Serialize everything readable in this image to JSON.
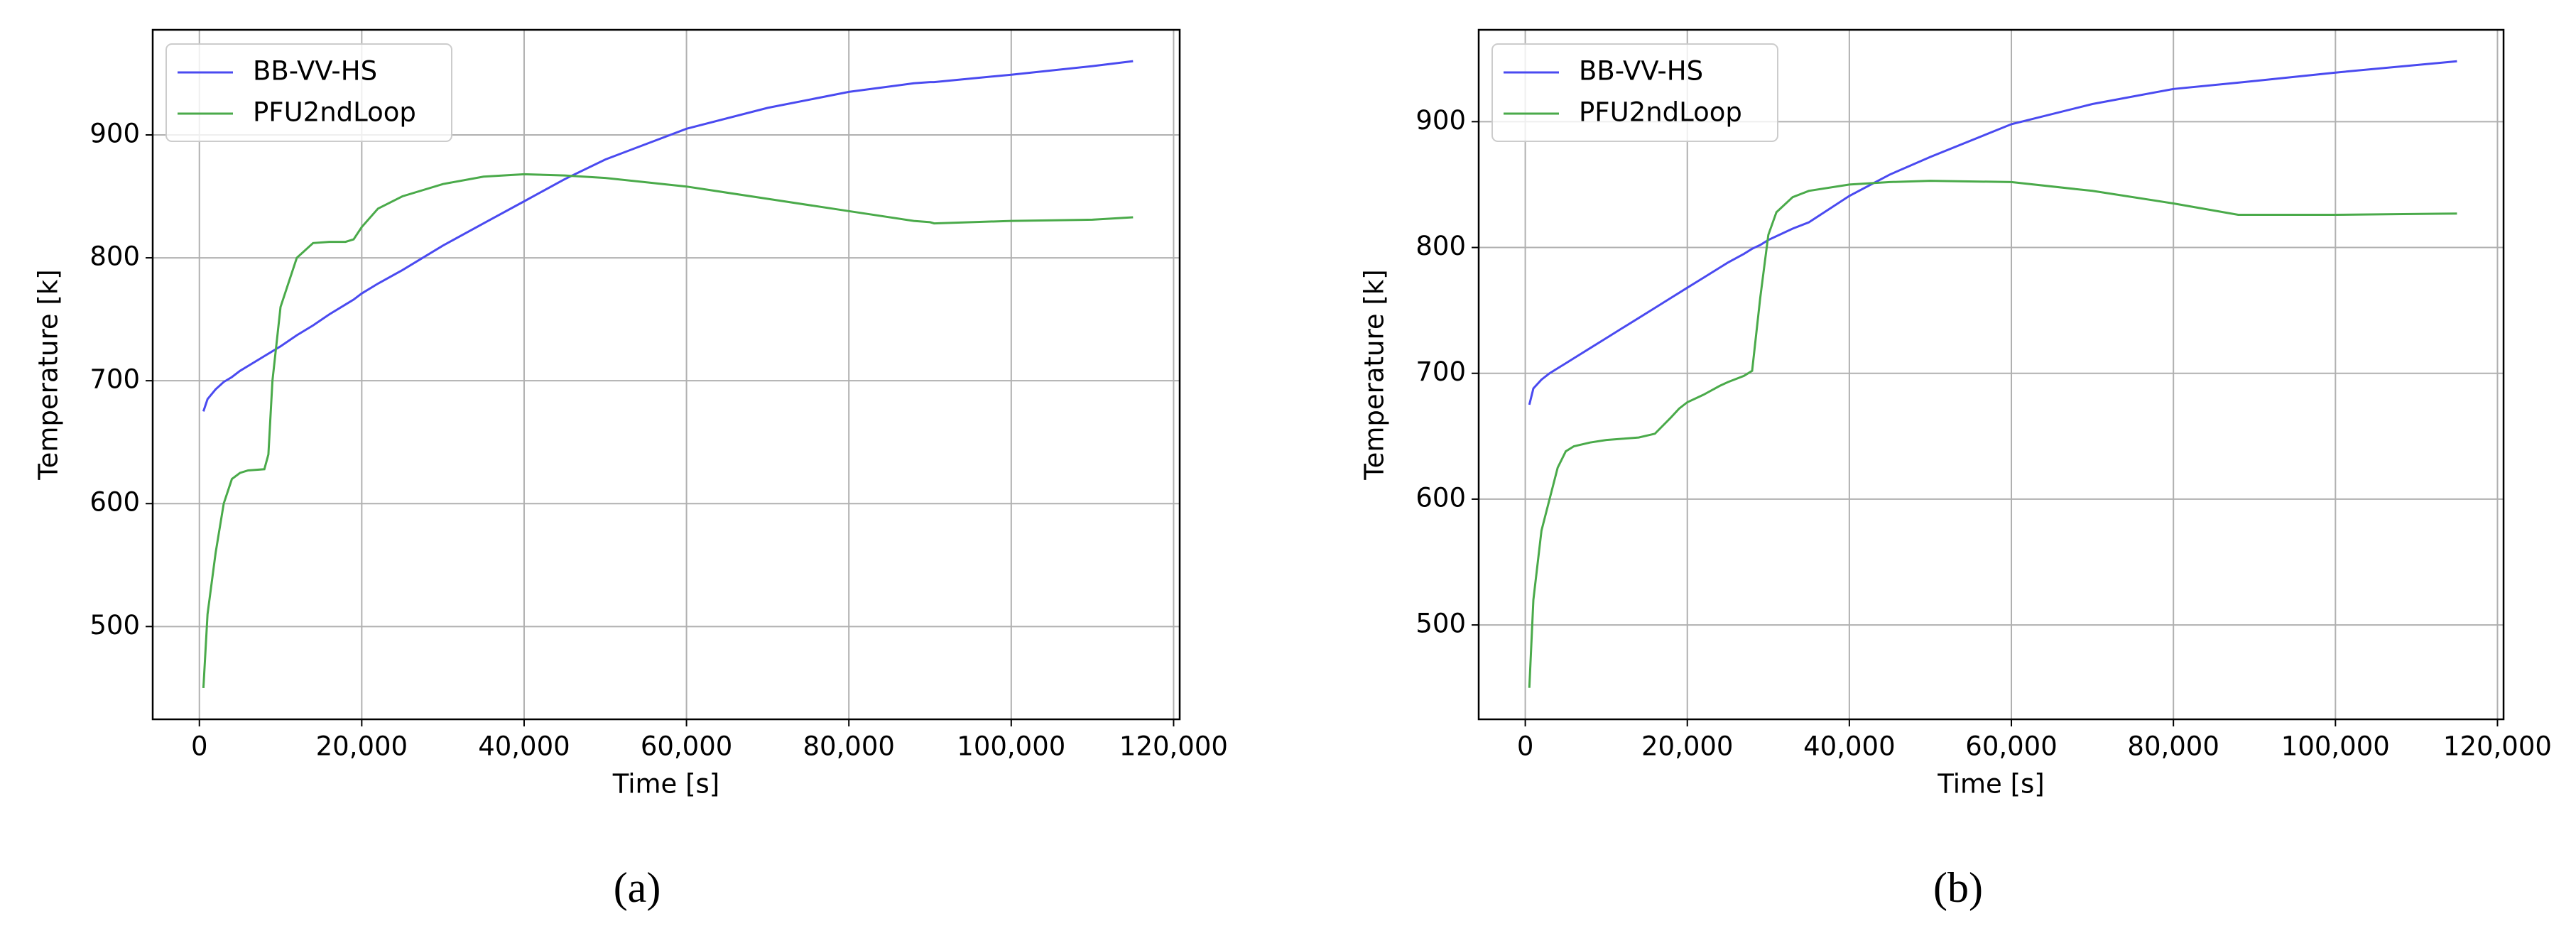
{
  "chart_data": [
    {
      "type": "line",
      "label": "(a)",
      "x_label": "Time [s]",
      "y_label": "Temperature [k]",
      "x": [
        500,
        1000,
        2000,
        3000,
        4000,
        5000,
        6000,
        8000,
        8500,
        9000,
        10000,
        12000,
        14000,
        16000,
        18000,
        19000,
        20000,
        22000,
        25000,
        30000,
        35000,
        40000,
        45000,
        50000,
        60000,
        70000,
        80000,
        88000,
        90000,
        90500,
        100000,
        110000,
        115000
      ],
      "series": [
        {
          "name": "BB-VV-HS",
          "color": "#4a4af0",
          "values": [
            675,
            685,
            693,
            699,
            703,
            708,
            712,
            720,
            722,
            724,
            728,
            737,
            745,
            754,
            762,
            766,
            771,
            779,
            790,
            810,
            828,
            846,
            864,
            880,
            905,
            922,
            935,
            942,
            943,
            943,
            949,
            956,
            960
          ]
        },
        {
          "name": "PFU2ndLoop",
          "color": "#4aaa4a",
          "values": [
            450,
            510,
            560,
            600,
            620,
            625,
            627,
            628,
            640,
            700,
            760,
            800,
            812,
            813,
            813,
            815,
            825,
            840,
            850,
            860,
            866,
            868,
            867,
            865,
            858,
            848,
            838,
            830,
            829,
            828,
            830,
            831,
            833
          ]
        }
      ],
      "xlim": [
        -5750,
        120750
      ],
      "ylim": [
        424.5,
        985.5
      ],
      "xticks": [
        0,
        {
          "value": 20000,
          "label": "20,000"
        },
        {
          "value": 40000,
          "label": "40,000"
        },
        {
          "value": 60000,
          "label": "60,000"
        },
        {
          "value": 80000,
          "label": "80,000"
        },
        {
          "value": 100000,
          "label": "100,000"
        },
        {
          "value": 120000,
          "label": "120,000"
        }
      ],
      "yticks": [
        500,
        600,
        700,
        800,
        900
      ],
      "grid": true,
      "legend": "upper left"
    },
    {
      "type": "line",
      "label": "(b)",
      "x_label": "Time [s]",
      "y_label": "Temperature [k]",
      "x": [
        500,
        1000,
        2000,
        3000,
        4000,
        5000,
        6000,
        8000,
        10000,
        12000,
        14000,
        16000,
        18000,
        19000,
        20000,
        22000,
        24000,
        25000,
        27000,
        28000,
        29000,
        30000,
        31000,
        33000,
        35000,
        40000,
        45000,
        50000,
        60000,
        70000,
        80000,
        88000,
        100000,
        115000
      ],
      "series": [
        {
          "name": "BB-VV-HS",
          "color": "#4a4af0",
          "values": [
            675,
            688,
            695,
            700,
            704,
            708,
            712,
            720,
            728,
            736,
            744,
            752,
            760,
            764,
            768,
            776,
            784,
            788,
            795,
            799,
            802,
            806,
            809,
            815,
            820,
            841,
            858,
            872,
            898,
            914,
            926,
            931,
            939,
            948
          ]
        },
        {
          "name": "PFU2ndLoop",
          "color": "#4aaa4a",
          "values": [
            450,
            520,
            575,
            600,
            625,
            638,
            642,
            645,
            647,
            648,
            649,
            652,
            665,
            672,
            677,
            683,
            690,
            693,
            698,
            702,
            760,
            810,
            828,
            840,
            845,
            850,
            852,
            853,
            852,
            845,
            835,
            826,
            826,
            827
          ]
        }
      ],
      "xlim": [
        -5750,
        120750
      ],
      "ylim": [
        425,
        973
      ],
      "xticks": [
        0,
        {
          "value": 20000,
          "label": "20,000"
        },
        {
          "value": 40000,
          "label": "40,000"
        },
        {
          "value": 60000,
          "label": "60,000"
        },
        {
          "value": 80000,
          "label": "80,000"
        },
        {
          "value": 100000,
          "label": "100,000"
        },
        {
          "value": 120000,
          "label": "120,000"
        }
      ],
      "yticks": [
        500,
        600,
        700,
        800,
        900
      ],
      "grid": true,
      "legend": "upper left"
    }
  ]
}
